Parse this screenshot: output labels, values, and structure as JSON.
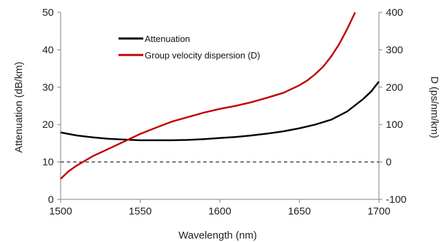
{
  "chart_data": {
    "type": "line",
    "xlabel": "Wavelength (nm)",
    "ylabel": "Attenuation (dB/km)",
    "y2label": "D (ps/nm/km)",
    "xlim": [
      1500,
      1700
    ],
    "ylim": [
      0,
      50
    ],
    "y2lim": [
      -100,
      400
    ],
    "x_ticks": [
      "1500",
      "1550",
      "1600",
      "1650",
      "1700"
    ],
    "y_ticks": [
      "0",
      "10",
      "20",
      "30",
      "40",
      "50"
    ],
    "y2_ticks": [
      "-100",
      "0",
      "100",
      "200",
      "300",
      "400"
    ],
    "grid": false,
    "legend_position": "top-center",
    "reference_line": {
      "axis": "y2",
      "value": 0,
      "style": "dashed",
      "color": "#000000"
    },
    "series": [
      {
        "name": "Attenuation",
        "axis": "y",
        "color": "#000000",
        "x": [
          1500,
          1510,
          1520,
          1530,
          1540,
          1550,
          1560,
          1570,
          1580,
          1590,
          1600,
          1610,
          1620,
          1630,
          1640,
          1650,
          1660,
          1670,
          1680,
          1690,
          1695,
          1700
        ],
        "y": [
          17.9,
          17.1,
          16.6,
          16.2,
          16.0,
          15.8,
          15.8,
          15.8,
          15.9,
          16.1,
          16.4,
          16.7,
          17.1,
          17.6,
          18.2,
          19.0,
          20.0,
          21.3,
          23.5,
          26.8,
          28.8,
          31.5
        ]
      },
      {
        "name": "Group velocity dispersion (D)",
        "axis": "y2",
        "color": "#c00000",
        "x": [
          1500,
          1505,
          1510,
          1520,
          1530,
          1540,
          1550,
          1560,
          1570,
          1580,
          1590,
          1600,
          1610,
          1620,
          1630,
          1640,
          1650,
          1655,
          1660,
          1665,
          1670,
          1675,
          1680,
          1685
        ],
        "y": [
          -45,
          -25,
          -10,
          15,
          35,
          55,
          75,
          92,
          108,
          120,
          132,
          142,
          150,
          160,
          172,
          185,
          205,
          218,
          235,
          255,
          282,
          315,
          355,
          400
        ]
      }
    ]
  }
}
